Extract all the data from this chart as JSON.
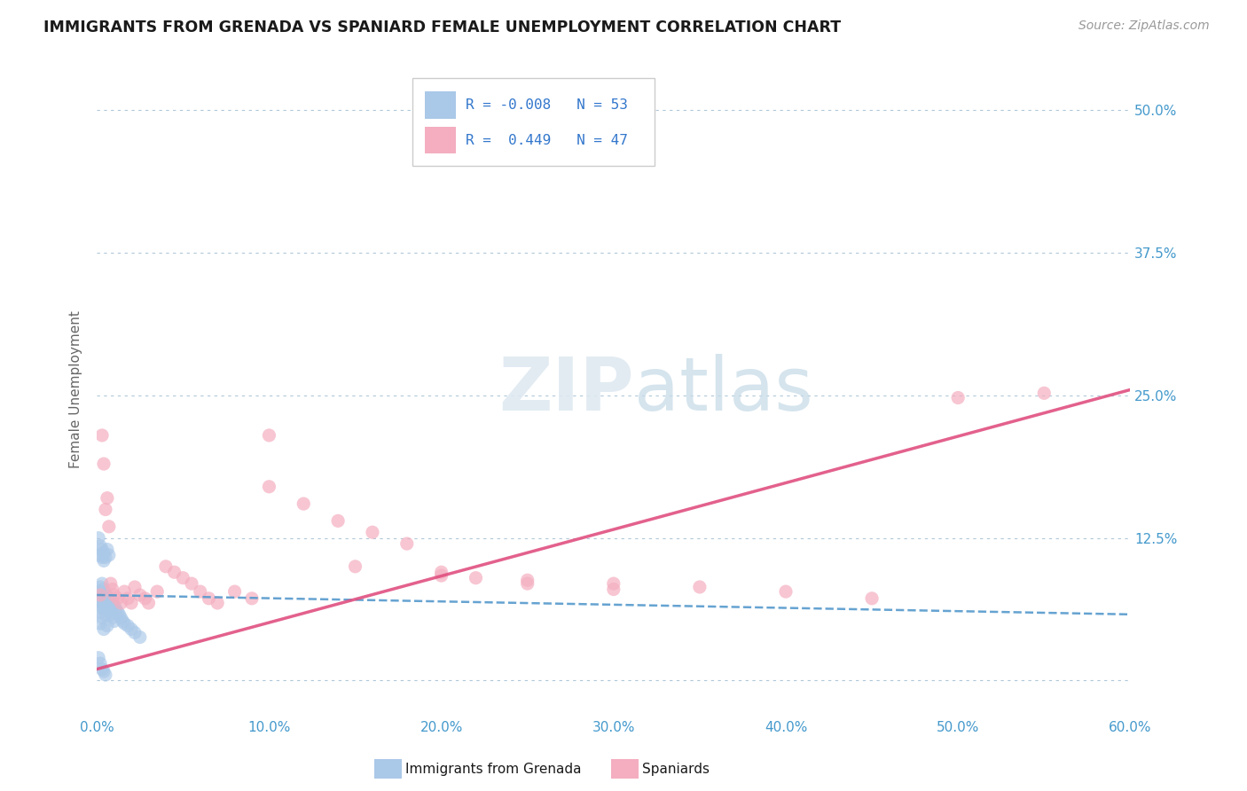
{
  "title": "IMMIGRANTS FROM GRENADA VS SPANIARD FEMALE UNEMPLOYMENT CORRELATION CHART",
  "source": "Source: ZipAtlas.com",
  "ylabel": "Female Unemployment",
  "xlim": [
    0.0,
    0.6
  ],
  "ylim": [
    -0.03,
    0.54
  ],
  "yticks": [
    0.0,
    0.125,
    0.25,
    0.375,
    0.5
  ],
  "ytick_labels": [
    "",
    "12.5%",
    "25.0%",
    "37.5%",
    "50.0%"
  ],
  "xtick_labels": [
    "0.0%",
    "10.0%",
    "20.0%",
    "30.0%",
    "40.0%",
    "50.0%",
    "60.0%"
  ],
  "xticks": [
    0.0,
    0.1,
    0.2,
    0.3,
    0.4,
    0.5,
    0.6
  ],
  "blue_color": "#aac8e8",
  "pink_color": "#f4aec0",
  "blue_line_color": "#5599cc",
  "pink_line_color": "#e05080",
  "watermark_zip": "ZIP",
  "watermark_atlas": "atlas",
  "blue_scatter_x": [
    0.001,
    0.001,
    0.002,
    0.002,
    0.002,
    0.002,
    0.003,
    0.003,
    0.003,
    0.003,
    0.004,
    0.004,
    0.004,
    0.004,
    0.005,
    0.005,
    0.005,
    0.006,
    0.006,
    0.006,
    0.007,
    0.007,
    0.008,
    0.008,
    0.009,
    0.009,
    0.01,
    0.01,
    0.011,
    0.012,
    0.013,
    0.014,
    0.015,
    0.016,
    0.018,
    0.02,
    0.022,
    0.025,
    0.001,
    0.002,
    0.002,
    0.003,
    0.003,
    0.004,
    0.004,
    0.005,
    0.006,
    0.007,
    0.001,
    0.002,
    0.003,
    0.004,
    0.005
  ],
  "blue_scatter_y": [
    0.078,
    0.065,
    0.082,
    0.07,
    0.06,
    0.05,
    0.085,
    0.075,
    0.068,
    0.055,
    0.08,
    0.072,
    0.063,
    0.045,
    0.076,
    0.068,
    0.058,
    0.074,
    0.066,
    0.048,
    0.072,
    0.062,
    0.07,
    0.058,
    0.068,
    0.055,
    0.066,
    0.052,
    0.063,
    0.06,
    0.058,
    0.055,
    0.052,
    0.05,
    0.048,
    0.045,
    0.042,
    0.038,
    0.125,
    0.118,
    0.11,
    0.115,
    0.108,
    0.112,
    0.105,
    0.108,
    0.115,
    0.11,
    0.02,
    0.015,
    0.01,
    0.008,
    0.005
  ],
  "pink_scatter_x": [
    0.002,
    0.003,
    0.004,
    0.005,
    0.006,
    0.007,
    0.008,
    0.009,
    0.01,
    0.012,
    0.014,
    0.016,
    0.018,
    0.02,
    0.022,
    0.025,
    0.028,
    0.03,
    0.035,
    0.04,
    0.045,
    0.05,
    0.055,
    0.06,
    0.065,
    0.07,
    0.08,
    0.09,
    0.1,
    0.15,
    0.2,
    0.25,
    0.3,
    0.35,
    0.4,
    0.45,
    0.5,
    0.55,
    0.1,
    0.12,
    0.14,
    0.16,
    0.18,
    0.2,
    0.22,
    0.25,
    0.3
  ],
  "pink_scatter_y": [
    0.075,
    0.215,
    0.19,
    0.15,
    0.16,
    0.135,
    0.085,
    0.08,
    0.075,
    0.072,
    0.068,
    0.078,
    0.072,
    0.068,
    0.082,
    0.075,
    0.072,
    0.068,
    0.078,
    0.1,
    0.095,
    0.09,
    0.085,
    0.078,
    0.072,
    0.068,
    0.078,
    0.072,
    0.215,
    0.1,
    0.092,
    0.088,
    0.085,
    0.082,
    0.078,
    0.072,
    0.248,
    0.252,
    0.17,
    0.155,
    0.14,
    0.13,
    0.12,
    0.095,
    0.09,
    0.085,
    0.08
  ],
  "blue_line_x": [
    0.0,
    0.6
  ],
  "blue_line_y_start": 0.075,
  "blue_line_y_end": 0.058,
  "pink_line_x": [
    0.0,
    0.6
  ],
  "pink_line_y_start": 0.01,
  "pink_line_y_end": 0.255
}
